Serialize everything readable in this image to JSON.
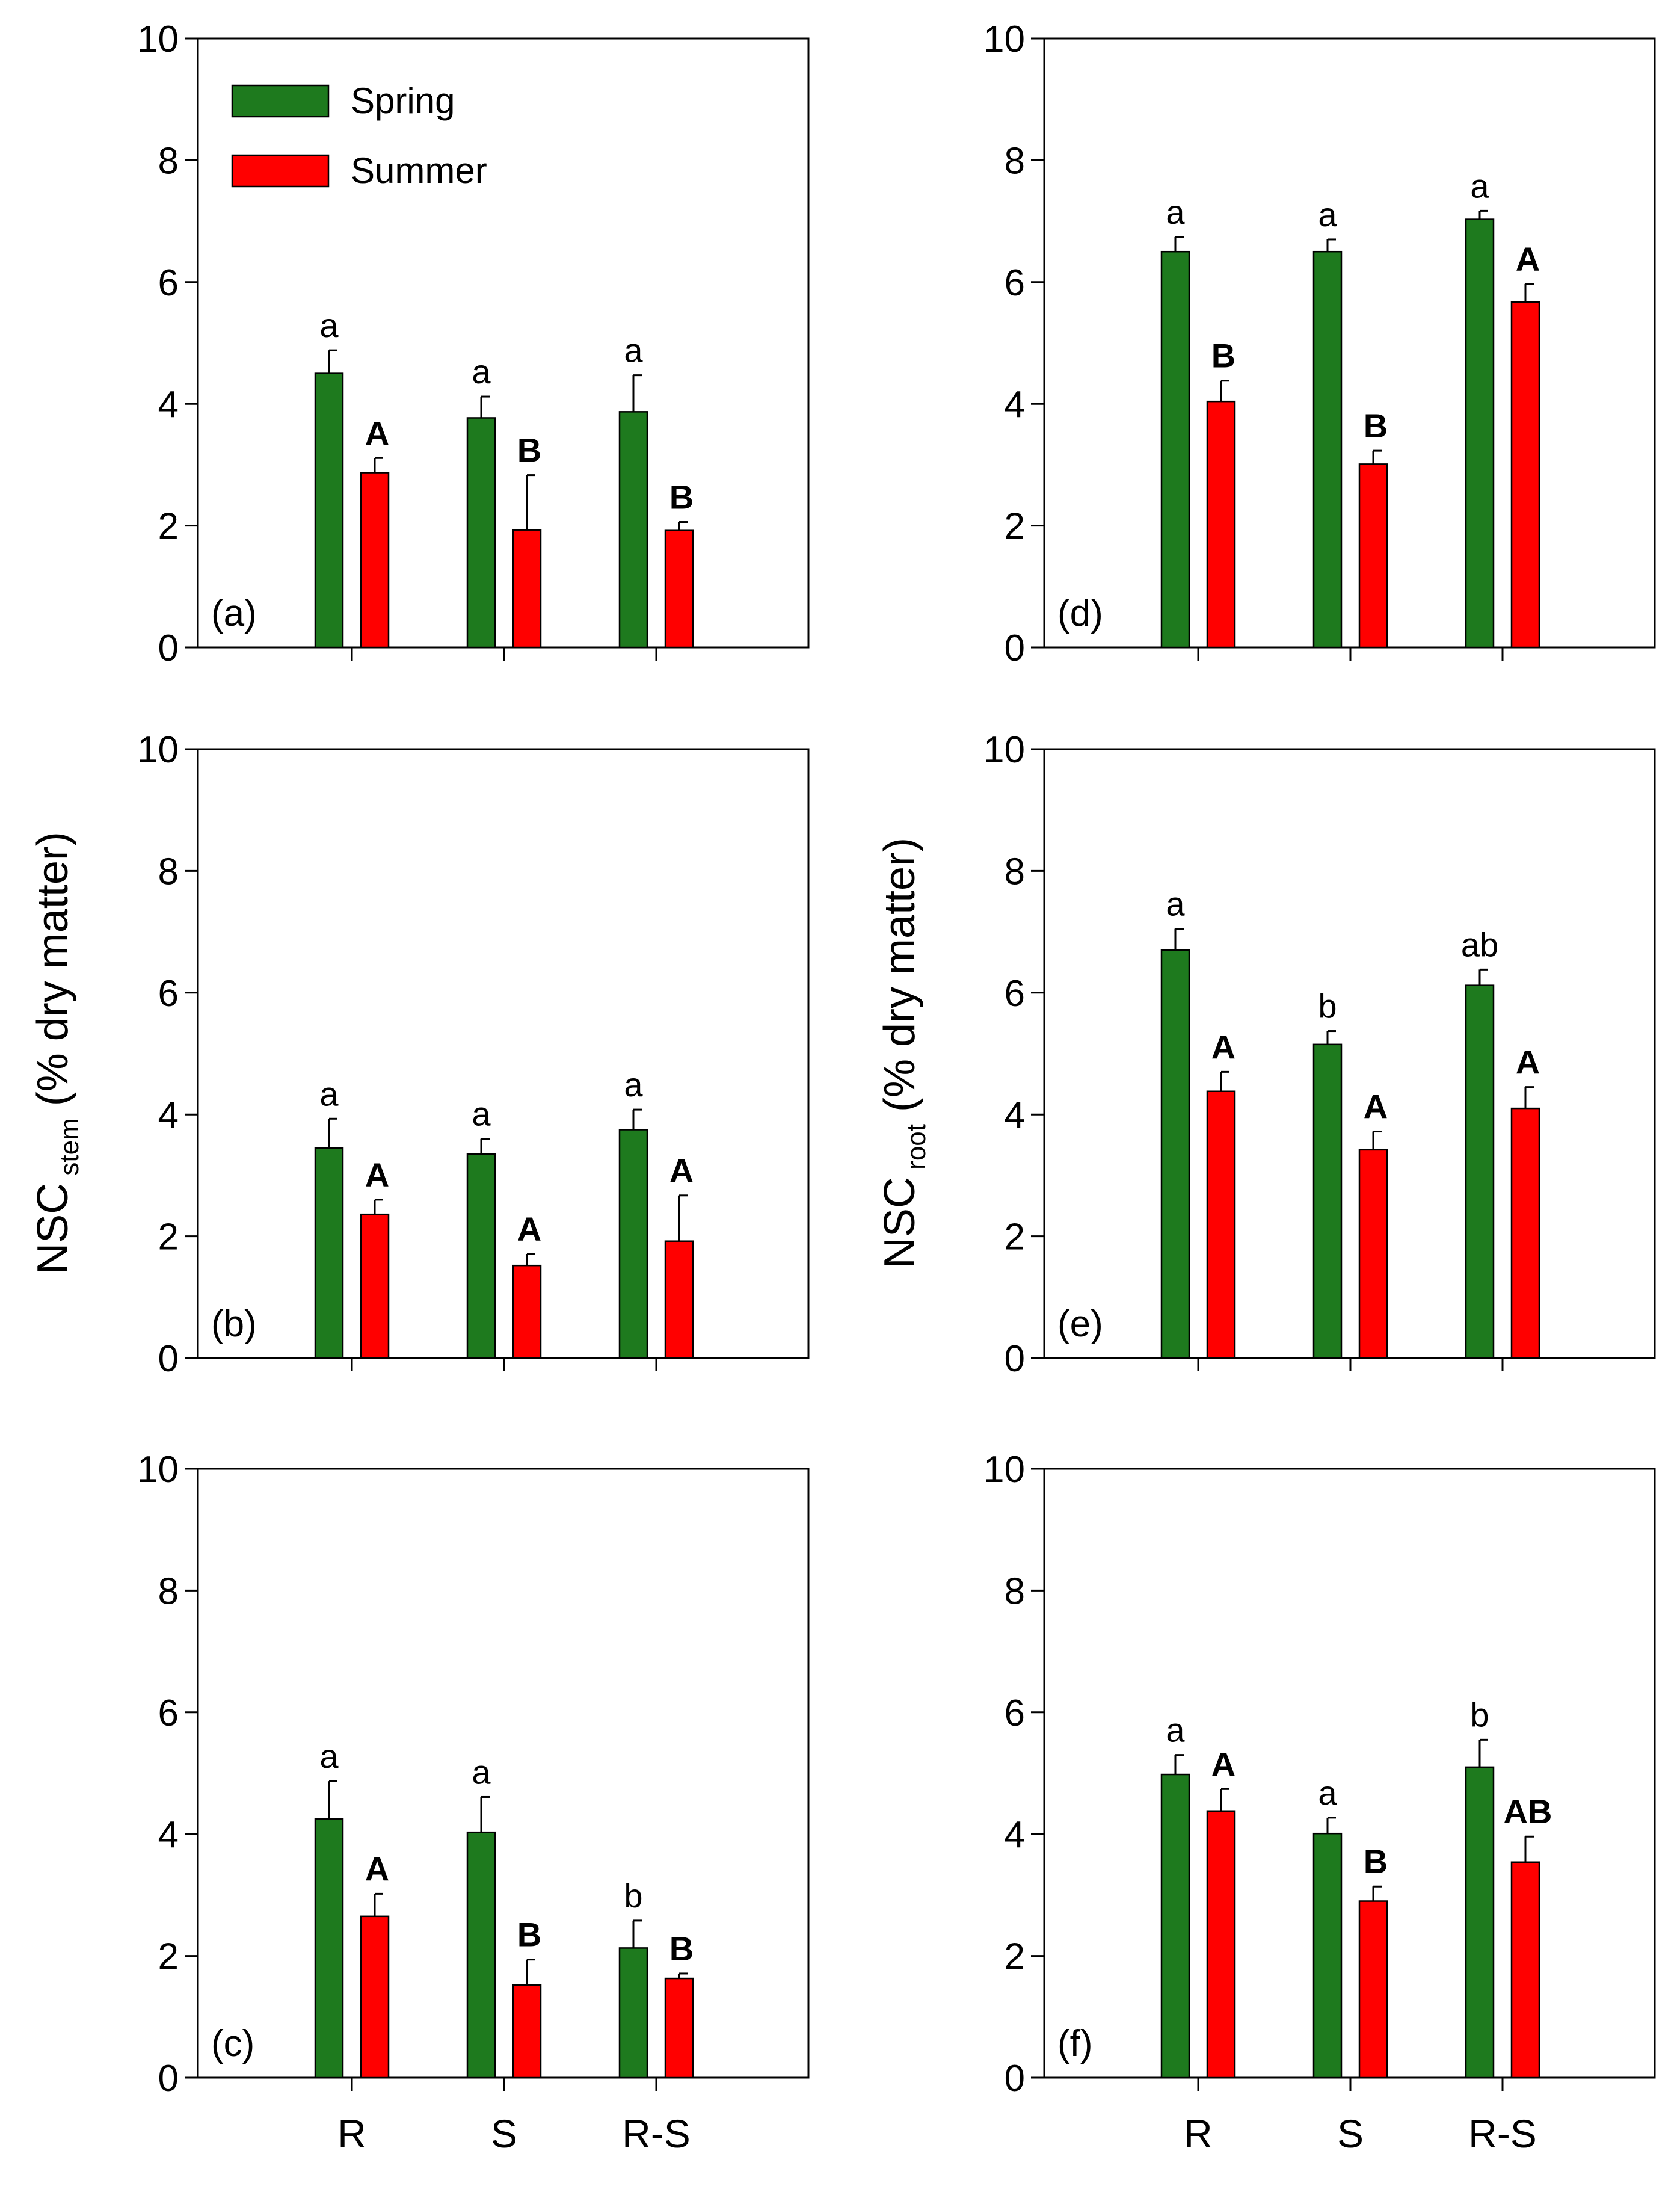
{
  "chart_data": {
    "type": "bar",
    "categories": [
      "R",
      "S",
      "R-S"
    ],
    "ylim": [
      0,
      10
    ],
    "yticks": [
      0,
      2,
      4,
      6,
      8,
      10
    ],
    "colors": {
      "Spring": "#1e7a1e",
      "Summer": "#ff0000"
    },
    "legend": {
      "placement": "top-left of panel (a)",
      "entries": [
        {
          "label": "Spring",
          "color": "#1e7a1e"
        },
        {
          "label": "Summer",
          "color": "#ff0000"
        }
      ]
    },
    "ylabels": {
      "left": {
        "main": "NSC",
        "sub": "stem",
        "unit": "(% dry matter)"
      },
      "right": {
        "main": "NSC",
        "sub": "root",
        "unit": "(% dry matter)"
      }
    },
    "panels": [
      {
        "label": "(a)",
        "series": [
          {
            "name": "Spring",
            "values": [
              4.5,
              3.77,
              3.87
            ],
            "errors": [
              0.38,
              0.35,
              0.6
            ],
            "letters": [
              "a",
              "a",
              "a"
            ]
          },
          {
            "name": "Summer",
            "values": [
              2.87,
              1.93,
              1.92
            ],
            "errors": [
              0.24,
              0.9,
              0.14
            ],
            "letters": [
              "A",
              "B",
              "B"
            ]
          }
        ]
      },
      {
        "label": "(b)",
        "series": [
          {
            "name": "Spring",
            "values": [
              3.45,
              3.35,
              3.75
            ],
            "errors": [
              0.48,
              0.25,
              0.33
            ],
            "letters": [
              "a",
              "a",
              "a"
            ]
          },
          {
            "name": "Summer",
            "values": [
              2.36,
              1.52,
              1.92
            ],
            "errors": [
              0.24,
              0.19,
              0.75
            ],
            "letters": [
              "A",
              "A",
              "A"
            ]
          }
        ]
      },
      {
        "label": "(c)",
        "series": [
          {
            "name": "Spring",
            "values": [
              4.25,
              4.03,
              2.13
            ],
            "errors": [
              0.62,
              0.58,
              0.45
            ],
            "letters": [
              "a",
              "a",
              "b"
            ]
          },
          {
            "name": "Summer",
            "values": [
              2.65,
              1.52,
              1.63
            ],
            "errors": [
              0.37,
              0.42,
              0.08
            ],
            "letters": [
              "A",
              "B",
              "B"
            ]
          }
        ]
      },
      {
        "label": "(d)",
        "series": [
          {
            "name": "Spring",
            "values": [
              6.5,
              6.5,
              7.03
            ],
            "errors": [
              0.24,
              0.2,
              0.14
            ],
            "letters": [
              "a",
              "a",
              "a"
            ]
          },
          {
            "name": "Summer",
            "values": [
              4.04,
              3.01,
              5.67
            ],
            "errors": [
              0.34,
              0.22,
              0.3
            ],
            "letters": [
              "B",
              "B",
              "A"
            ]
          }
        ]
      },
      {
        "label": "(e)",
        "series": [
          {
            "name": "Spring",
            "values": [
              6.7,
              5.15,
              6.12
            ],
            "errors": [
              0.35,
              0.22,
              0.26
            ],
            "letters": [
              "a",
              "b",
              "ab"
            ]
          },
          {
            "name": "Summer",
            "values": [
              4.38,
              3.42,
              4.1
            ],
            "errors": [
              0.32,
              0.3,
              0.35
            ],
            "letters": [
              "A",
              "A",
              "A"
            ]
          }
        ]
      },
      {
        "label": "(f)",
        "series": [
          {
            "name": "Spring",
            "values": [
              4.98,
              4.01,
              5.1
            ],
            "errors": [
              0.32,
              0.26,
              0.45
            ],
            "letters": [
              "a",
              "a",
              "b"
            ]
          },
          {
            "name": "Summer",
            "values": [
              4.38,
              2.9,
              3.54
            ],
            "errors": [
              0.36,
              0.24,
              0.42
            ],
            "letters": [
              "A",
              "B",
              "AB"
            ]
          }
        ]
      }
    ]
  }
}
